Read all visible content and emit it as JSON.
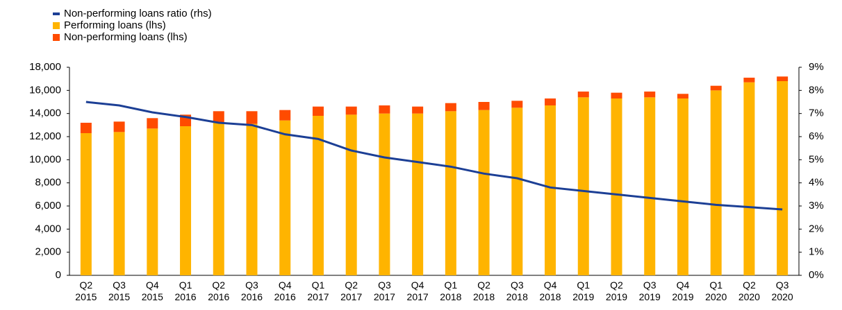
{
  "chart_data": {
    "type": "bar",
    "categories": [
      "Q2 2015",
      "Q3 2015",
      "Q4 2015",
      "Q1 2016",
      "Q2 2016",
      "Q3 2016",
      "Q4 2016",
      "Q1 2017",
      "Q2 2017",
      "Q3 2017",
      "Q4 2017",
      "Q1 2018",
      "Q2 2018",
      "Q3 2018",
      "Q4 2018",
      "Q1 2019",
      "Q2 2019",
      "Q3 2019",
      "Q4 2019",
      "Q1 2020",
      "Q2 2020",
      "Q3 2020"
    ],
    "series": [
      {
        "name": "Performing loans (lhs)",
        "color": "#ffb400",
        "values": [
          12300,
          12400,
          12700,
          12900,
          13200,
          13100,
          13400,
          13800,
          13900,
          14000,
          14000,
          14200,
          14300,
          14500,
          14700,
          15400,
          15300,
          15400,
          15300,
          16000,
          16700,
          16800
        ]
      },
      {
        "name": "Non-performing loans (lhs)",
        "color": "#ff4b00",
        "values": [
          900,
          900,
          900,
          1000,
          1000,
          1100,
          900,
          800,
          700,
          700,
          600,
          700,
          700,
          600,
          600,
          500,
          500,
          500,
          400,
          400,
          400,
          400
        ]
      },
      {
        "name": "Non-performing loans ratio (rhs)",
        "color": "#1c3f95",
        "axis": "y2",
        "type": "line",
        "values": [
          7.5,
          7.35,
          7.05,
          6.85,
          6.6,
          6.5,
          6.1,
          5.9,
          5.4,
          5.1,
          4.9,
          4.7,
          4.4,
          4.2,
          3.8,
          3.65,
          3.5,
          3.35,
          3.2,
          3.05,
          2.95,
          2.85
        ]
      }
    ],
    "ylim": [
      0,
      18000
    ],
    "yticks": [
      0,
      {
        "value": 2000,
        "label": "2,000"
      },
      {
        "value": 4000,
        "label": "4,000"
      },
      {
        "value": 6000,
        "label": "6,000"
      },
      {
        "value": 8000,
        "label": "8,000"
      },
      {
        "value": 10000,
        "label": "10,000"
      },
      {
        "value": 12000,
        "label": "12,000"
      },
      {
        "value": 14000,
        "label": "14,000"
      },
      {
        "value": 16000,
        "label": "16,000"
      },
      {
        "value": 18000,
        "label": "18,000"
      }
    ],
    "y2lim": [
      0,
      9
    ],
    "y2ticks": [
      {
        "value": 0,
        "label": "0%"
      },
      {
        "value": 1,
        "label": "1%"
      },
      {
        "value": 2,
        "label": "2%"
      },
      {
        "value": 3,
        "label": "3%"
      },
      {
        "value": 4,
        "label": "4%"
      },
      {
        "value": 5,
        "label": "5%"
      },
      {
        "value": 6,
        "label": "6%"
      },
      {
        "value": 7,
        "label": "7%"
      },
      {
        "value": 8,
        "label": "8%"
      },
      {
        "value": 9,
        "label": "9%"
      }
    ],
    "stacked": true,
    "grid": false
  }
}
